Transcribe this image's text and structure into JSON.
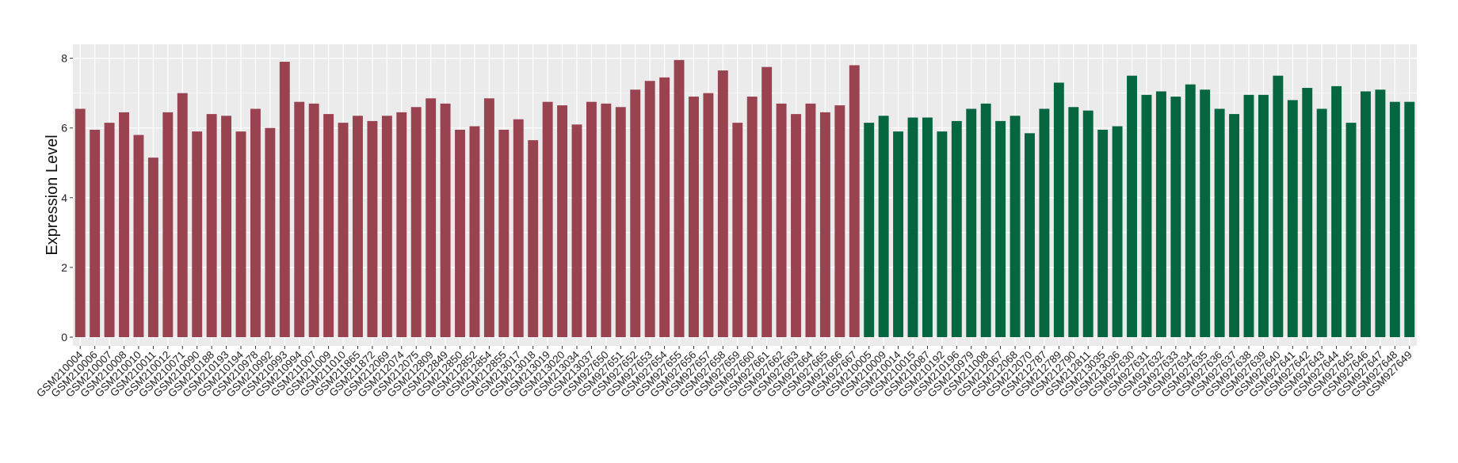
{
  "chart_data": {
    "type": "bar",
    "ylabel": "Expression Level",
    "xlabel": "",
    "ylim": [
      -0.25,
      8.4
    ],
    "yticks": [
      0,
      2,
      4,
      6,
      8
    ],
    "grid": true,
    "colors": {
      "group1": "#9A4350",
      "group2": "#056640",
      "panel": "#EBEBEB",
      "grid": "#FFFFFF"
    },
    "series": [
      {
        "color": "#9A4350",
        "categories": [
          "GSM210004",
          "GSM210006",
          "GSM210007",
          "GSM210008",
          "GSM210010",
          "GSM210011",
          "GSM210012",
          "GSM210071",
          "GSM210090",
          "GSM210188",
          "GSM210193",
          "GSM210194",
          "GSM210978",
          "GSM210992",
          "GSM210993",
          "GSM210994",
          "GSM211007",
          "GSM211009",
          "GSM211010",
          "GSM211865",
          "GSM211872",
          "GSM212069",
          "GSM212074",
          "GSM212075",
          "GSM212809",
          "GSM212849",
          "GSM212850",
          "GSM212852",
          "GSM212854",
          "GSM212855",
          "GSM213017",
          "GSM213018",
          "GSM213019",
          "GSM213020",
          "GSM213034",
          "GSM213037",
          "GSM927650",
          "GSM927651",
          "GSM927652",
          "GSM927653",
          "GSM927654",
          "GSM927655",
          "GSM927656",
          "GSM927657",
          "GSM927658",
          "GSM927659",
          "GSM927660",
          "GSM927661",
          "GSM927662",
          "GSM927663",
          "GSM927664",
          "GSM927665",
          "GSM927666",
          "GSM927667"
        ],
        "values": [
          6.55,
          5.95,
          6.15,
          6.45,
          5.8,
          5.15,
          6.45,
          7.0,
          5.9,
          6.4,
          6.35,
          5.9,
          6.55,
          6.0,
          7.9,
          6.75,
          6.7,
          6.4,
          6.15,
          6.35,
          6.2,
          6.35,
          6.45,
          6.6,
          6.85,
          6.7,
          5.95,
          6.05,
          6.85,
          5.95,
          6.25,
          5.65,
          6.75,
          6.65,
          6.1,
          6.75,
          6.7,
          6.6,
          7.1,
          7.35,
          7.45,
          7.95,
          6.9,
          7.0,
          7.65,
          6.15,
          6.9,
          7.75,
          6.7,
          6.4,
          6.7,
          6.45,
          6.65,
          7.8
        ]
      },
      {
        "color": "#056640",
        "categories": [
          "GSM210005",
          "GSM210009",
          "GSM210014",
          "GSM210015",
          "GSM210087",
          "GSM210192",
          "GSM210196",
          "GSM210979",
          "GSM211008",
          "GSM212067",
          "GSM212068",
          "GSM212070",
          "GSM212787",
          "GSM212789",
          "GSM212790",
          "GSM212811",
          "GSM213035",
          "GSM213036",
          "GSM927630",
          "GSM927631",
          "GSM927632",
          "GSM927633",
          "GSM927634",
          "GSM927635",
          "GSM927636",
          "GSM927637",
          "GSM927638",
          "GSM927639",
          "GSM927640",
          "GSM927641",
          "GSM927642",
          "GSM927643",
          "GSM927644",
          "GSM927645",
          "GSM927646",
          "GSM927647",
          "GSM927648",
          "GSM927649"
        ],
        "values": [
          6.15,
          6.35,
          5.9,
          6.3,
          6.3,
          5.9,
          6.2,
          6.55,
          6.7,
          6.2,
          6.35,
          5.85,
          6.55,
          7.3,
          6.6,
          6.5,
          5.95,
          6.05,
          7.5,
          6.95,
          7.05,
          6.9,
          7.25,
          7.1,
          6.55,
          6.4,
          6.95,
          6.95,
          7.5,
          6.8,
          7.15,
          6.55,
          7.2,
          6.15,
          7.05,
          7.1,
          6.75,
          6.75
        ]
      }
    ]
  }
}
